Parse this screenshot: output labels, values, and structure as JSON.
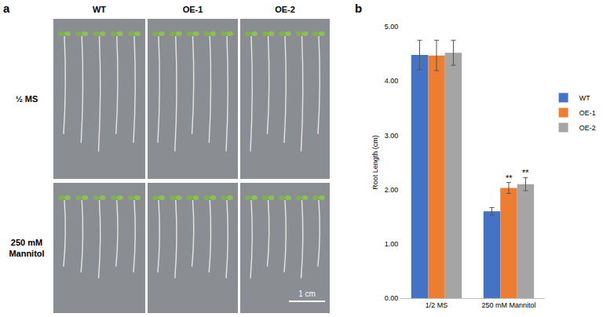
{
  "panel_labels": [
    "a",
    "b"
  ],
  "photo_panel": {
    "columns": [
      "WT",
      "OE-1",
      "OE-2"
    ],
    "rows": [
      "½ MS",
      "250 mM Mannitol"
    ],
    "scale_bar": "1 cm"
  },
  "chart_data": {
    "type": "bar",
    "categories": [
      "1/2 MS",
      "250 mM Mannitol"
    ],
    "y_label": "Root Length (cm)",
    "ylim": [
      0,
      5
    ],
    "yticks": [
      {
        "value": 0,
        "label": "0.00"
      },
      {
        "value": 1,
        "label": "1.00"
      },
      {
        "value": 2,
        "label": "2.00"
      },
      {
        "value": 3,
        "label": "3.00"
      },
      {
        "value": 4,
        "label": "4.00"
      },
      {
        "value": 5,
        "label": "5.00"
      }
    ],
    "grid": false,
    "legend": "right",
    "series": [
      {
        "name": "WT",
        "color": "#4472C4",
        "values": [
          4.48,
          1.6
        ],
        "errors": [
          0.27,
          0.07
        ]
      },
      {
        "name": "OE-1",
        "color": "#ED7D31",
        "values": [
          4.47,
          2.03
        ],
        "errors": [
          0.28,
          0.1
        ]
      },
      {
        "name": "OE-2",
        "color": "#A5A5A5",
        "values": [
          4.52,
          2.1
        ],
        "errors": [
          0.23,
          0.12
        ]
      }
    ],
    "annotations": [
      {
        "text": "**",
        "category": "250 mM Mannitol",
        "series": "OE-1"
      },
      {
        "text": "**",
        "category": "250 mM Mannitol",
        "series": "OE-2"
      }
    ]
  }
}
